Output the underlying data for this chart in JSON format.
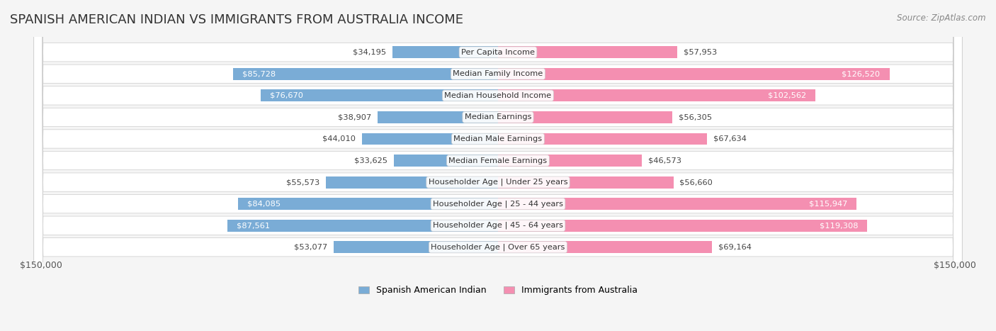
{
  "title": "SPANISH AMERICAN INDIAN VS IMMIGRANTS FROM AUSTRALIA INCOME",
  "source": "Source: ZipAtlas.com",
  "categories": [
    "Per Capita Income",
    "Median Family Income",
    "Median Household Income",
    "Median Earnings",
    "Median Male Earnings",
    "Median Female Earnings",
    "Householder Age | Under 25 years",
    "Householder Age | 25 - 44 years",
    "Householder Age | 45 - 64 years",
    "Householder Age | Over 65 years"
  ],
  "left_values": [
    34195,
    85728,
    76670,
    38907,
    44010,
    33625,
    55573,
    84085,
    87561,
    53077
  ],
  "right_values": [
    57953,
    126520,
    102562,
    56305,
    67634,
    46573,
    56660,
    115947,
    119308,
    69164
  ],
  "left_labels": [
    "$34,195",
    "$85,728",
    "$76,670",
    "$38,907",
    "$44,010",
    "$33,625",
    "$55,573",
    "$84,085",
    "$87,561",
    "$53,077"
  ],
  "right_labels": [
    "$57,953",
    "$126,520",
    "$102,562",
    "$56,305",
    "$67,634",
    "$46,573",
    "$56,660",
    "$115,947",
    "$119,308",
    "$69,164"
  ],
  "max_value": 150000,
  "left_color": "#7aacd6",
  "right_color": "#f48fb1",
  "left_color_dark": "#5b8fc4",
  "right_color_dark": "#e91e8c",
  "bar_height": 0.55,
  "background_color": "#f5f5f5",
  "row_bg_color": "#ffffff",
  "label_fontsize": 9.5,
  "title_fontsize": 13,
  "legend_label_left": "Spanish American Indian",
  "legend_label_right": "Immigrants from Australia",
  "axis_label_left": "$150,000",
  "axis_label_right": "$150,000"
}
